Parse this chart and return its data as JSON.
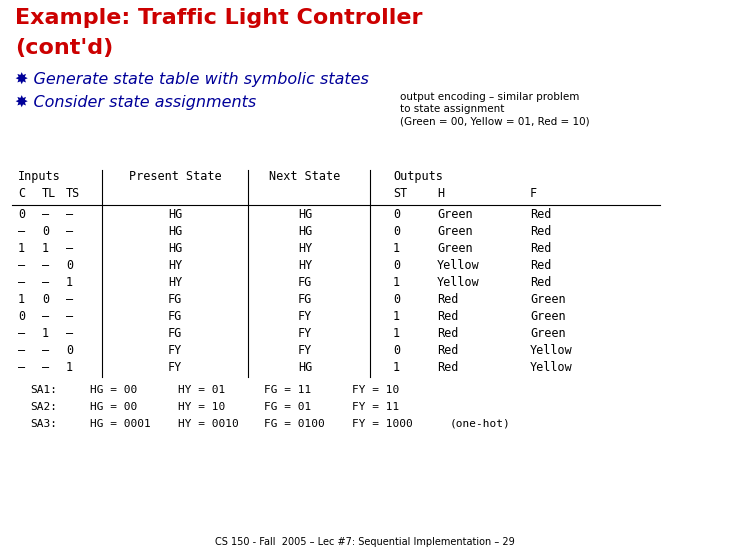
{
  "title_line1": "Example: Traffic Light Controller",
  "title_line2": "(cont'd)",
  "title_color": "#cc0000",
  "bullet1": "Generate state table with symbolic states",
  "bullet2": "Consider state assignments",
  "bullet_color": "#000099",
  "bullet_symbol": "✸",
  "side_note_line1": "output encoding – similar problem",
  "side_note_line2": "to state assignment",
  "side_note_line3": "(Green = 00, Yellow = 01, Red = 10)",
  "table_rows": [
    [
      "0",
      "–",
      "–",
      "HG",
      "HG",
      "0",
      "Green",
      "Red"
    ],
    [
      "–",
      "0",
      "–",
      "HG",
      "HG",
      "0",
      "Green",
      "Red"
    ],
    [
      "1",
      "1",
      "–",
      "HG",
      "HY",
      "1",
      "Green",
      "Red"
    ],
    [
      "–",
      "–",
      "0",
      "HY",
      "HY",
      "0",
      "Yellow",
      "Red"
    ],
    [
      "–",
      "–",
      "1",
      "HY",
      "FG",
      "1",
      "Yellow",
      "Red"
    ],
    [
      "1",
      "0",
      "–",
      "FG",
      "FG",
      "0",
      "Red",
      "Green"
    ],
    [
      "0",
      "–",
      "–",
      "FG",
      "FY",
      "1",
      "Red",
      "Green"
    ],
    [
      "–",
      "1",
      "–",
      "FG",
      "FY",
      "1",
      "Red",
      "Green"
    ],
    [
      "–",
      "–",
      "0",
      "FY",
      "FY",
      "0",
      "Red",
      "Yellow"
    ],
    [
      "–",
      "–",
      "1",
      "FY",
      "HG",
      "1",
      "Red",
      "Yellow"
    ]
  ],
  "sa_rows": [
    [
      "SA1:",
      "HG = 00",
      "HY = 01",
      "FG = 11",
      "FY = 10",
      ""
    ],
    [
      "SA2:",
      "HG = 00",
      "HY = 10",
      "FG = 01",
      "FY = 11",
      ""
    ],
    [
      "SA3:",
      "HG = 0001",
      "HY = 0010",
      "FG = 0100",
      "FY = 1000",
      "(one-hot)"
    ]
  ],
  "footer": "CS 150 - Fall  2005 – Lec #7: Sequential Implementation – 29",
  "bg_color": "#ffffff"
}
